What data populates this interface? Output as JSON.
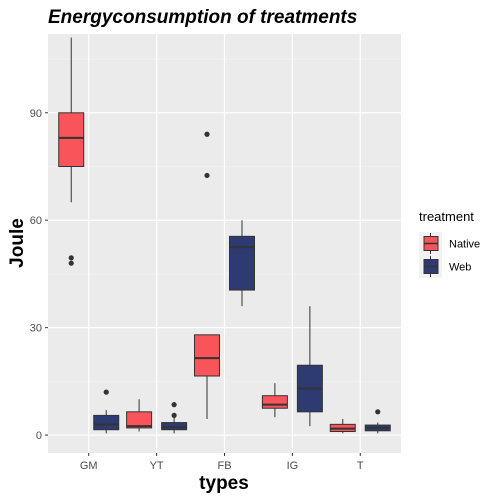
{
  "chart_data": {
    "type": "boxplot",
    "title": "Energyconsumption of treatments",
    "xlabel": "types",
    "ylabel": "Joule",
    "categories": [
      "GM",
      "YT",
      "FB",
      "IG",
      "T"
    ],
    "ylim": [
      -5,
      112
    ],
    "yticks": [
      0,
      30,
      60,
      90
    ],
    "grid": true,
    "legend": {
      "title": "treatment",
      "position": "right"
    },
    "series": [
      {
        "name": "Native",
        "color": "#F8545A",
        "boxes": [
          {
            "category": "GM",
            "min": 65,
            "q1": 75,
            "median": 83,
            "q3": 90,
            "max": 111,
            "outliers": [
              48,
              49.5
            ]
          },
          {
            "category": "YT",
            "min": 1,
            "q1": 2,
            "median": 2.5,
            "q3": 6.5,
            "max": 10,
            "outliers": []
          },
          {
            "category": "FB",
            "min": 4.5,
            "q1": 16.5,
            "median": 21.5,
            "q3": 28,
            "max": 28,
            "outliers": [
              72.5,
              84
            ]
          },
          {
            "category": "IG",
            "min": 5,
            "q1": 7.5,
            "median": 8.5,
            "q3": 11,
            "max": 14.5,
            "outliers": []
          },
          {
            "category": "T",
            "min": 0.5,
            "q1": 1,
            "median": 1.8,
            "q3": 3,
            "max": 4.5,
            "outliers": []
          }
        ]
      },
      {
        "name": "Web",
        "color": "#2E3A72",
        "boxes": [
          {
            "category": "GM",
            "min": 0.5,
            "q1": 1.5,
            "median": 3,
            "q3": 5.5,
            "max": 7,
            "outliers": [
              12
            ]
          },
          {
            "category": "YT",
            "min": 0.5,
            "q1": 1.5,
            "median": 2.2,
            "q3": 3.5,
            "max": 5,
            "outliers": [
              5.5,
              8.5
            ]
          },
          {
            "category": "FB",
            "min": 36,
            "q1": 40.5,
            "median": 52.5,
            "q3": 55.5,
            "max": 60,
            "outliers": []
          },
          {
            "category": "IG",
            "min": 2.5,
            "q1": 6.5,
            "median": 13,
            "q3": 19.5,
            "max": 36,
            "outliers": []
          },
          {
            "category": "T",
            "min": 0.5,
            "q1": 1.2,
            "median": 2,
            "q3": 2.8,
            "max": 3.5,
            "outliers": [
              6.5
            ]
          }
        ]
      }
    ]
  }
}
